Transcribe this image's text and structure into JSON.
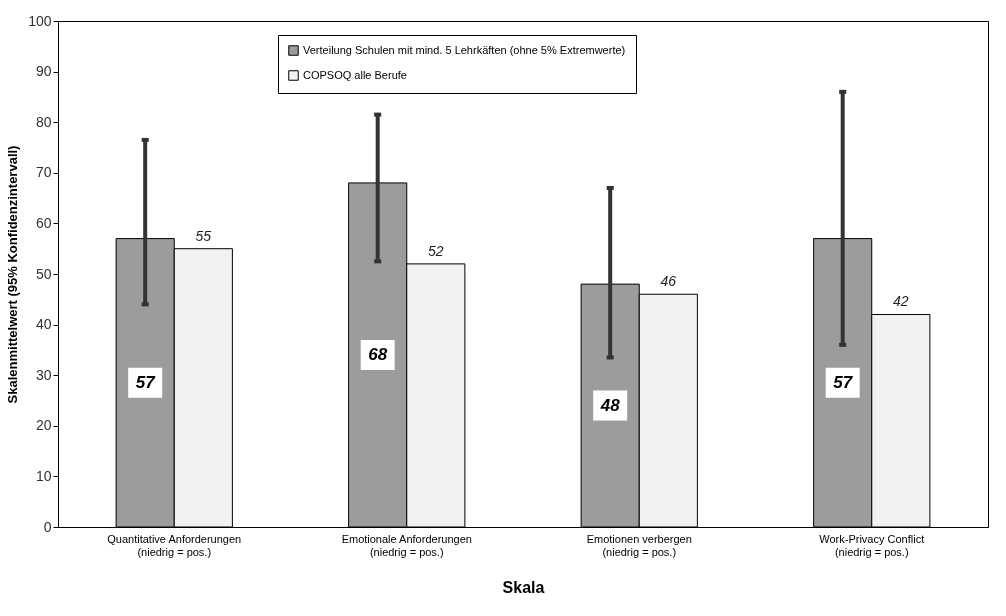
{
  "chart_data": {
    "type": "bar",
    "xlabel": "Skala",
    "ylabel": "Skalenmittelwert (95% Konfidenzintervall)",
    "categories": [
      "Quantitative Anforderungen\n(niedrig = pos.)",
      "Emotionale Anforderungen\n(niedrig = pos.)",
      "Emotionen verbergen\n(niedrig = pos.)",
      "Work-Privacy Conflict\n(niedrig = pos.)"
    ],
    "series": [
      {
        "name": "Verteilung Schulen mit mind. 5 Lehrkäften (ohne 5% Extremwerte)",
        "color": "#9c9c9c",
        "values": [
          57,
          68,
          48,
          57
        ],
        "errors": [
          [
            44,
            76.5
          ],
          [
            52.5,
            81.5
          ],
          [
            33.5,
            67
          ],
          [
            36,
            86
          ]
        ]
      },
      {
        "name": "COPSOQ alle Berufe",
        "color": "#f2f2f2",
        "values": [
          55,
          52,
          46,
          42
        ]
      }
    ],
    "ylim": [
      0,
      100
    ],
    "yticks": [
      0,
      10,
      20,
      30,
      40,
      50,
      60,
      70,
      80,
      90,
      100
    ],
    "legend": "top",
    "data_labels": true
  }
}
